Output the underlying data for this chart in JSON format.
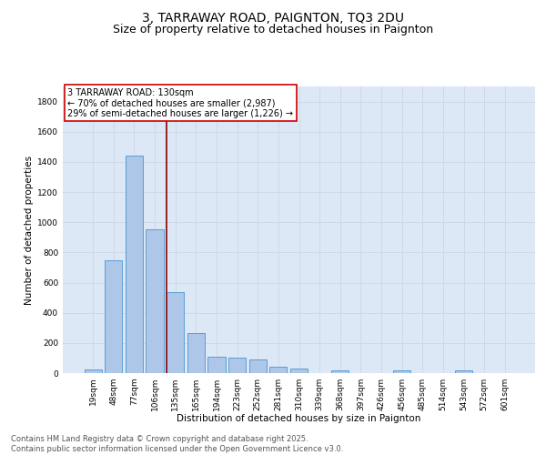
{
  "title": "3, TARRAWAY ROAD, PAIGNTON, TQ3 2DU",
  "subtitle": "Size of property relative to detached houses in Paignton",
  "xlabel": "Distribution of detached houses by size in Paignton",
  "ylabel": "Number of detached properties",
  "categories": [
    "19sqm",
    "48sqm",
    "77sqm",
    "106sqm",
    "135sqm",
    "165sqm",
    "194sqm",
    "223sqm",
    "252sqm",
    "281sqm",
    "310sqm",
    "339sqm",
    "368sqm",
    "397sqm",
    "426sqm",
    "456sqm",
    "485sqm",
    "514sqm",
    "543sqm",
    "572sqm",
    "601sqm"
  ],
  "values": [
    22,
    745,
    1440,
    955,
    535,
    265,
    110,
    105,
    90,
    40,
    28,
    0,
    18,
    0,
    0,
    20,
    0,
    0,
    18,
    0,
    0
  ],
  "bar_color": "#aec6e8",
  "bar_edge_color": "#5a9fd4",
  "grid_color": "#d0d8e8",
  "background_color": "#dce8f5",
  "annotation_box_color": "#cc0000",
  "vline_x_index": 3.57,
  "annotation_lines": [
    "3 TARRAWAY ROAD: 130sqm",
    "← 70% of detached houses are smaller (2,987)",
    "29% of semi-detached houses are larger (1,226) →"
  ],
  "footer_line1": "Contains HM Land Registry data © Crown copyright and database right 2025.",
  "footer_line2": "Contains public sector information licensed under the Open Government Licence v3.0.",
  "ylim": [
    0,
    1900
  ],
  "yticks": [
    0,
    200,
    400,
    600,
    800,
    1000,
    1200,
    1400,
    1600,
    1800
  ],
  "title_fontsize": 10,
  "subtitle_fontsize": 9,
  "axis_label_fontsize": 7.5,
  "tick_fontsize": 6.5,
  "annotation_fontsize": 7,
  "footer_fontsize": 6
}
